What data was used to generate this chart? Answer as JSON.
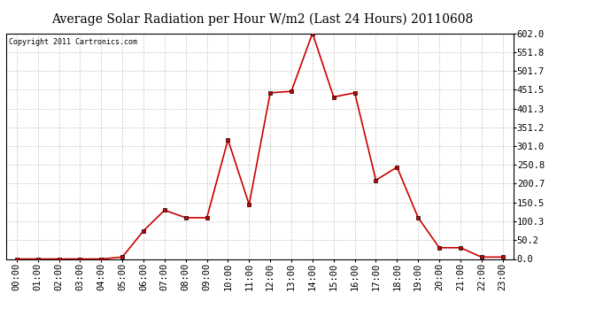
{
  "title": "Average Solar Radiation per Hour W/m2 (Last 24 Hours) 20110608",
  "copyright": "Copyright 2011 Cartronics.com",
  "x_labels": [
    "00:00",
    "01:00",
    "02:00",
    "03:00",
    "04:00",
    "05:00",
    "06:00",
    "07:00",
    "08:00",
    "09:00",
    "10:00",
    "11:00",
    "12:00",
    "13:00",
    "14:00",
    "15:00",
    "16:00",
    "17:00",
    "18:00",
    "19:00",
    "20:00",
    "21:00",
    "22:00",
    "23:00"
  ],
  "y_values": [
    0.0,
    0.0,
    0.0,
    0.0,
    0.0,
    5.0,
    75.0,
    130.0,
    110.0,
    110.0,
    318.0,
    145.0,
    443.0,
    447.0,
    602.0,
    432.0,
    443.0,
    210.0,
    245.0,
    110.0,
    30.0,
    30.0,
    5.0,
    5.0
  ],
  "yticks": [
    0.0,
    50.2,
    100.3,
    150.5,
    200.7,
    250.8,
    301.0,
    351.2,
    401.3,
    451.5,
    501.7,
    551.8,
    602.0
  ],
  "line_color": "#cc0000",
  "marker_color": "#000000",
  "bg_color": "#ffffff",
  "plot_bg_color": "#ffffff",
  "grid_color": "#c8c8c8",
  "title_fontsize": 10,
  "copyright_fontsize": 6,
  "tick_fontsize": 7.5
}
